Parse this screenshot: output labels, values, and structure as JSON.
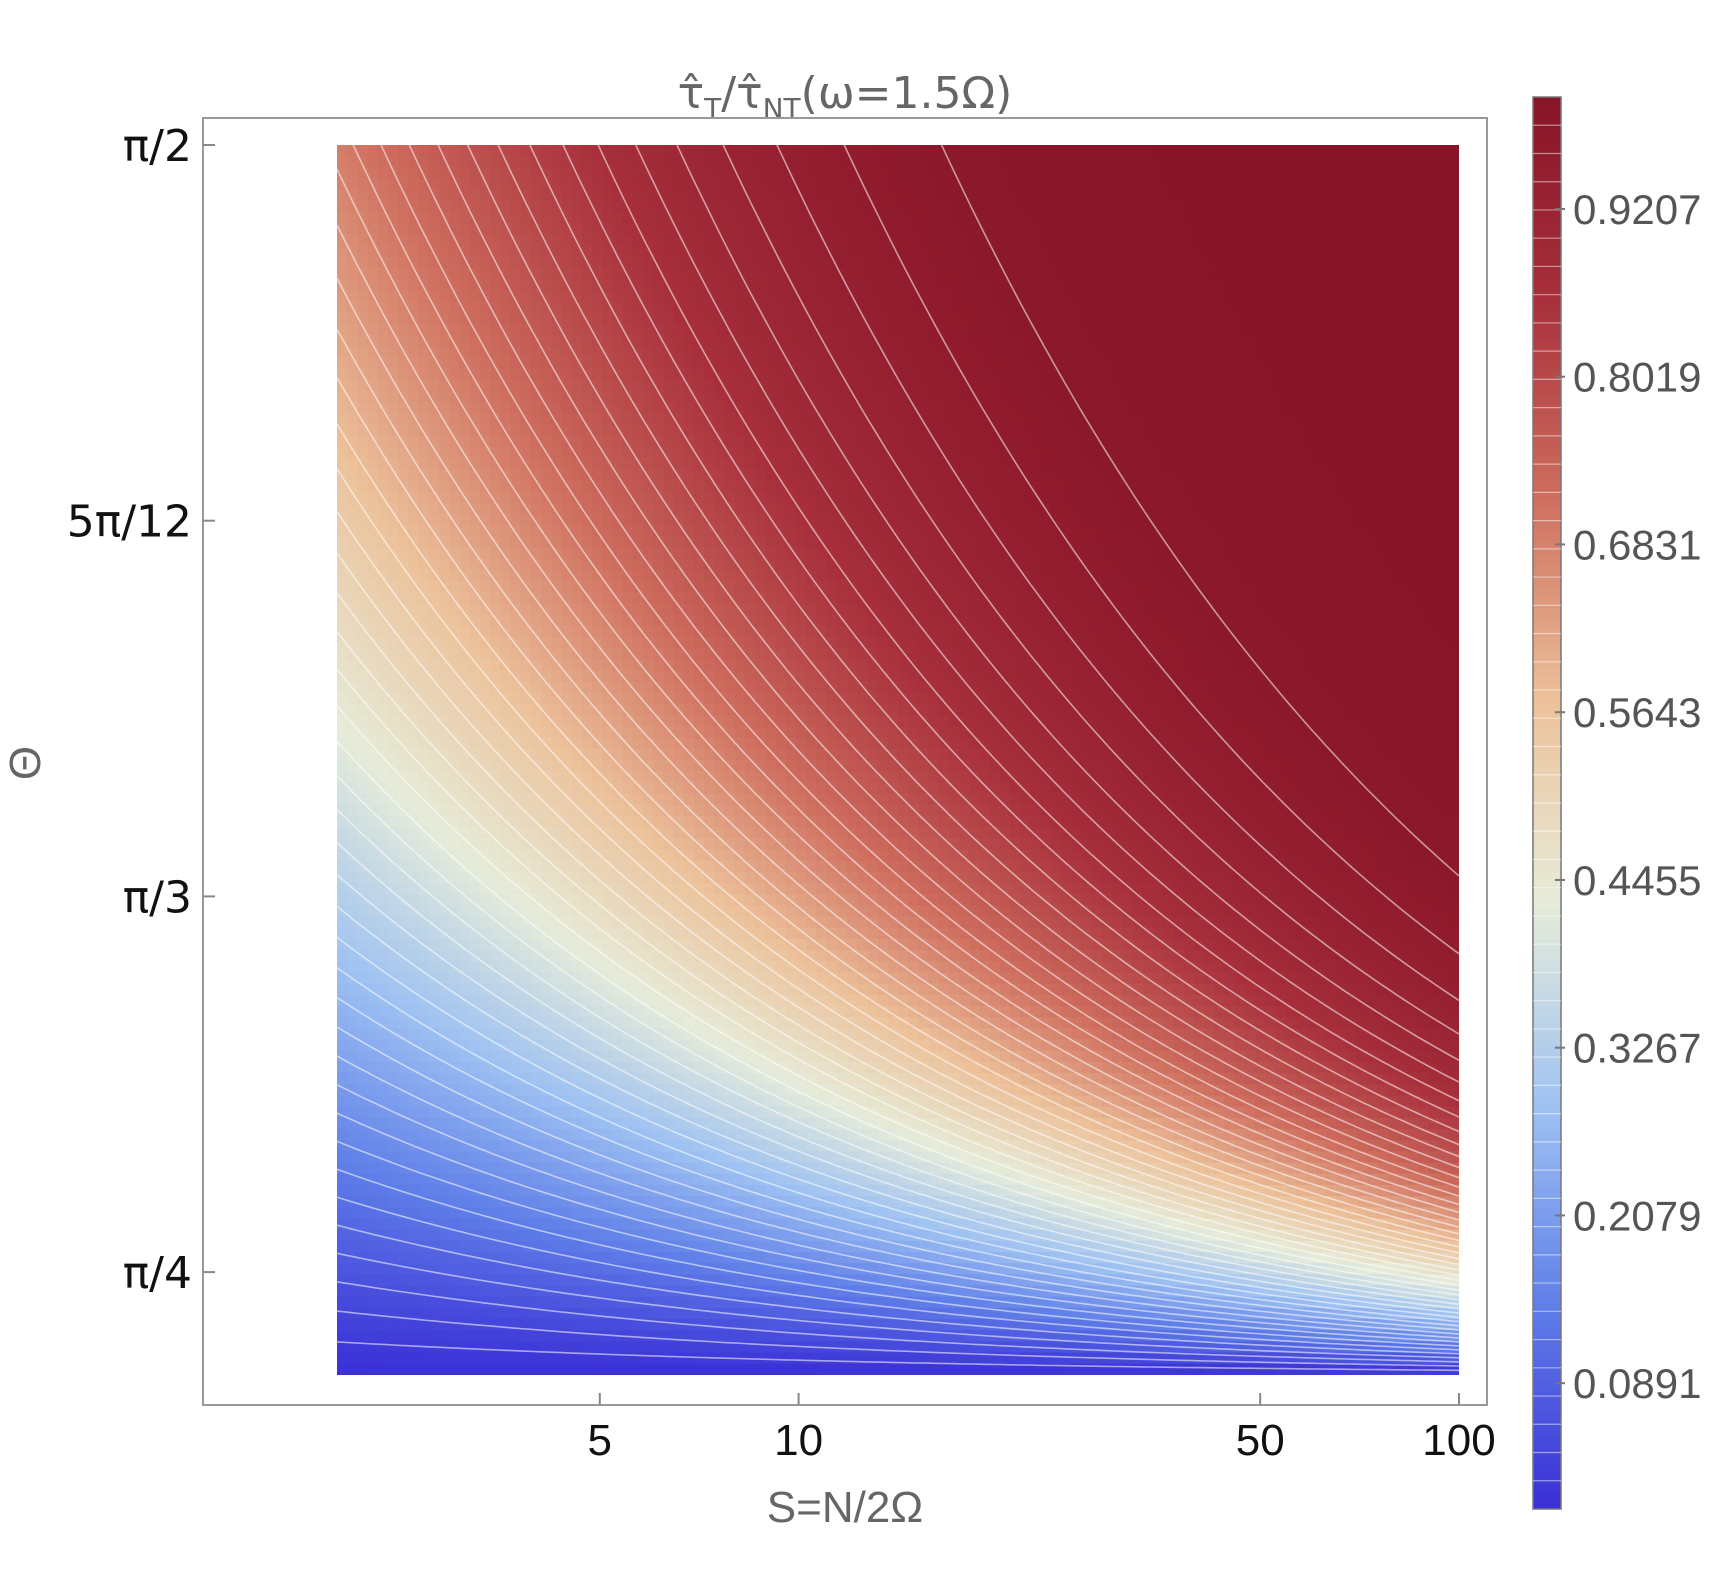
{
  "chart_data": {
    "type": "contour",
    "title": "τ̂T/τ̂NT(ω=1.5Ω)",
    "title_parts": {
      "num": "τ̂",
      "num_sub": "T",
      "slash": "/",
      "den": "τ̂",
      "den_sub": "NT",
      "tail": "(ω=1.5Ω)"
    },
    "xlabel": "S=N/2Ω",
    "ylabel": "Θ",
    "x_scale": "log",
    "x_range": [
      2,
      100
    ],
    "y_range": [
      0.7137,
      1.5708
    ],
    "x_ticks": [
      {
        "value": 5,
        "label": "5"
      },
      {
        "value": 10,
        "label": "10"
      },
      {
        "value": 50,
        "label": "50"
      },
      {
        "value": 100,
        "label": "100"
      }
    ],
    "y_ticks": [
      {
        "value": 1.5708,
        "label": "π/2"
      },
      {
        "value": 1.309,
        "label": "5π/12"
      },
      {
        "value": 1.0472,
        "label": "π/3"
      },
      {
        "value": 0.7854,
        "label": "π/4"
      }
    ],
    "colorbar": {
      "range": [
        0,
        1
      ],
      "ticks": [
        {
          "value": 0.9207,
          "label": "0.9207"
        },
        {
          "value": 0.8019,
          "label": "0.8019"
        },
        {
          "value": 0.6831,
          "label": "0.6831"
        },
        {
          "value": 0.5643,
          "label": "0.5643"
        },
        {
          "value": 0.4455,
          "label": "0.4455"
        },
        {
          "value": 0.3267,
          "label": "0.3267"
        },
        {
          "value": 0.2079,
          "label": "0.2079"
        },
        {
          "value": 0.0891,
          "label": "0.0891"
        }
      ],
      "stops": [
        "#3a2fd6",
        "#5f7ee8",
        "#9fc2f2",
        "#e6ecd9",
        "#ecc19a",
        "#cf6f5f",
        "#a8303c",
        "#871428"
      ]
    },
    "legend_placement": "right",
    "grid": false
  }
}
